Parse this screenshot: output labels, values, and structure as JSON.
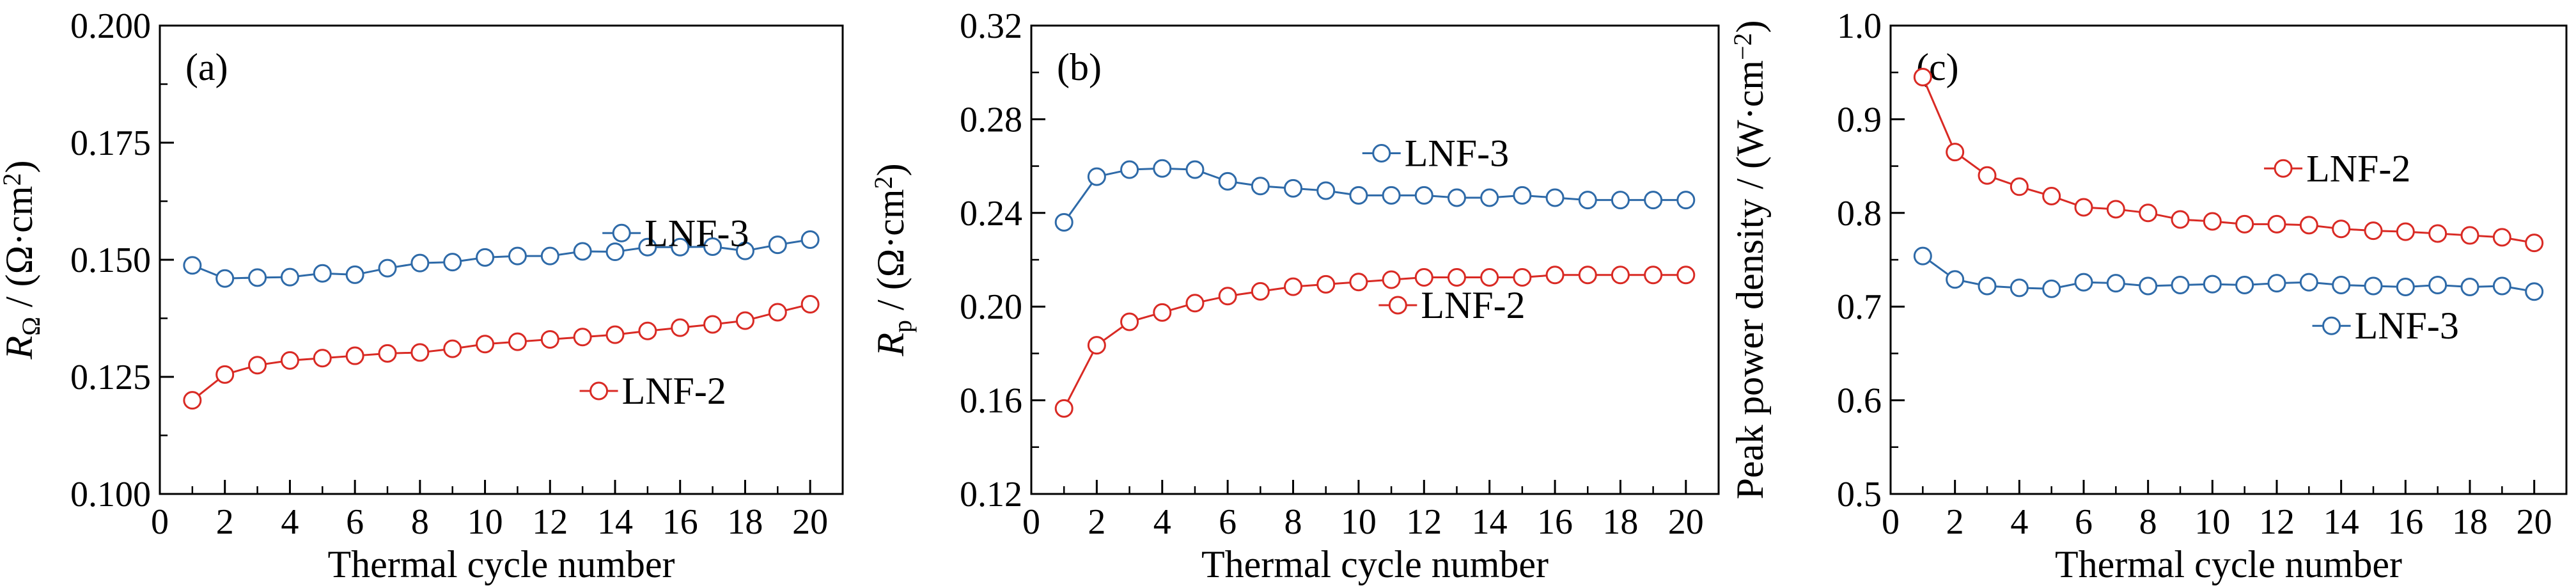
{
  "colors": {
    "LNF-3": "#2e6aa8",
    "LNF-2": "#d92a24",
    "axis": "#000000"
  },
  "chart_data": [
    {
      "type": "line",
      "panel_label": "(a)",
      "xlabel": "Thermal cycle number",
      "ylabel_main": "R",
      "ylabel_sub": "Ω",
      "ylabel_rest": " / (Ω·cm",
      "ylabel_sup": "2",
      "ylabel_end": ")",
      "xlim": [
        0,
        21
      ],
      "ylim": [
        0.1,
        0.2
      ],
      "xticks": [
        "0",
        "2",
        "4",
        "6",
        "8",
        "10",
        "12",
        "14",
        "16",
        "18",
        "20"
      ],
      "yticks": [
        "0.100",
        "0.125",
        "0.150",
        "0.175",
        "0.200"
      ],
      "x": [
        1,
        2,
        3,
        4,
        5,
        6,
        7,
        8,
        9,
        10,
        11,
        12,
        13,
        14,
        15,
        16,
        17,
        18,
        19,
        20
      ],
      "series": [
        {
          "name": "LNF-3",
          "legend_at": [
            14.2,
            0.1557
          ],
          "values": [
            0.1488,
            0.146,
            0.1462,
            0.1463,
            0.1471,
            0.1468,
            0.1482,
            0.1493,
            0.1495,
            0.1505,
            0.1508,
            0.1508,
            0.1518,
            0.1517,
            0.1527,
            0.1527,
            0.1528,
            0.1519,
            0.1532,
            0.1543
          ]
        },
        {
          "name": "LNF-2",
          "legend_at": [
            13.5,
            0.122
          ],
          "values": [
            0.12,
            0.1255,
            0.1275,
            0.1285,
            0.129,
            0.1295,
            0.13,
            0.1302,
            0.131,
            0.132,
            0.1325,
            0.133,
            0.1335,
            0.134,
            0.1348,
            0.1355,
            0.1362,
            0.137,
            0.1388,
            0.1405
          ]
        }
      ]
    },
    {
      "type": "line",
      "panel_label": "(b)",
      "xlabel": "Thermal cycle number",
      "ylabel_main": "R",
      "ylabel_sub": "p",
      "ylabel_rest": " / (Ω·cm",
      "ylabel_sup": "2",
      "ylabel_end": ")",
      "xlim": [
        0,
        21
      ],
      "ylim": [
        0.12,
        0.32
      ],
      "xticks": [
        "0",
        "2",
        "4",
        "6",
        "8",
        "10",
        "12",
        "14",
        "16",
        "18",
        "20"
      ],
      "yticks": [
        "0.12",
        "0.16",
        "0.20",
        "0.24",
        "0.28",
        "0.32"
      ],
      "x": [
        1,
        2,
        3,
        4,
        5,
        6,
        7,
        8,
        9,
        10,
        11,
        12,
        13,
        14,
        15,
        16,
        17,
        18,
        19,
        20
      ],
      "series": [
        {
          "name": "LNF-3",
          "legend_at": [
            10.7,
            0.2655
          ],
          "values": [
            0.236,
            0.2555,
            0.2585,
            0.259,
            0.2585,
            0.2535,
            0.2515,
            0.2505,
            0.2495,
            0.2475,
            0.2475,
            0.2475,
            0.2465,
            0.2465,
            0.2475,
            0.2465,
            0.2455,
            0.2455,
            0.2455,
            0.2455
          ]
        },
        {
          "name": "LNF-2",
          "legend_at": [
            11.2,
            0.2006
          ],
          "values": [
            0.1565,
            0.1835,
            0.1935,
            0.1975,
            0.2015,
            0.2045,
            0.2065,
            0.2085,
            0.2095,
            0.2105,
            0.2115,
            0.2125,
            0.2125,
            0.2125,
            0.2125,
            0.2135,
            0.2135,
            0.2135,
            0.2135,
            0.2135
          ]
        }
      ]
    },
    {
      "type": "line",
      "panel_label": "(c)",
      "xlabel": "Thermal cycle number",
      "ylabel_plain": "Peak power density / (W·cm",
      "ylabel_sup": "−2",
      "ylabel_end": ")",
      "xlim": [
        0,
        21
      ],
      "ylim": [
        0.5,
        1.0
      ],
      "xticks": [
        "0",
        "2",
        "4",
        "6",
        "8",
        "10",
        "12",
        "14",
        "16",
        "18",
        "20"
      ],
      "yticks": [
        "0.5",
        "0.6",
        "0.7",
        "0.8",
        "0.9",
        "1.0"
      ],
      "x": [
        1,
        2,
        3,
        4,
        5,
        6,
        7,
        8,
        9,
        10,
        11,
        12,
        13,
        14,
        15,
        16,
        17,
        18,
        19,
        20
      ],
      "series": [
        {
          "name": "LNF-2",
          "legend_at": [
            12.2,
            0.8475
          ],
          "values": [
            0.945,
            0.865,
            0.84,
            0.828,
            0.818,
            0.806,
            0.804,
            0.8,
            0.793,
            0.791,
            0.788,
            0.788,
            0.787,
            0.783,
            0.781,
            0.78,
            0.778,
            0.776,
            0.774,
            0.768
          ]
        },
        {
          "name": "LNF-3",
          "legend_at": [
            13.7,
            0.6795
          ],
          "values": [
            0.754,
            0.729,
            0.722,
            0.72,
            0.719,
            0.726,
            0.725,
            0.722,
            0.723,
            0.724,
            0.723,
            0.725,
            0.726,
            0.723,
            0.722,
            0.721,
            0.723,
            0.721,
            0.722,
            0.716
          ]
        }
      ]
    }
  ]
}
